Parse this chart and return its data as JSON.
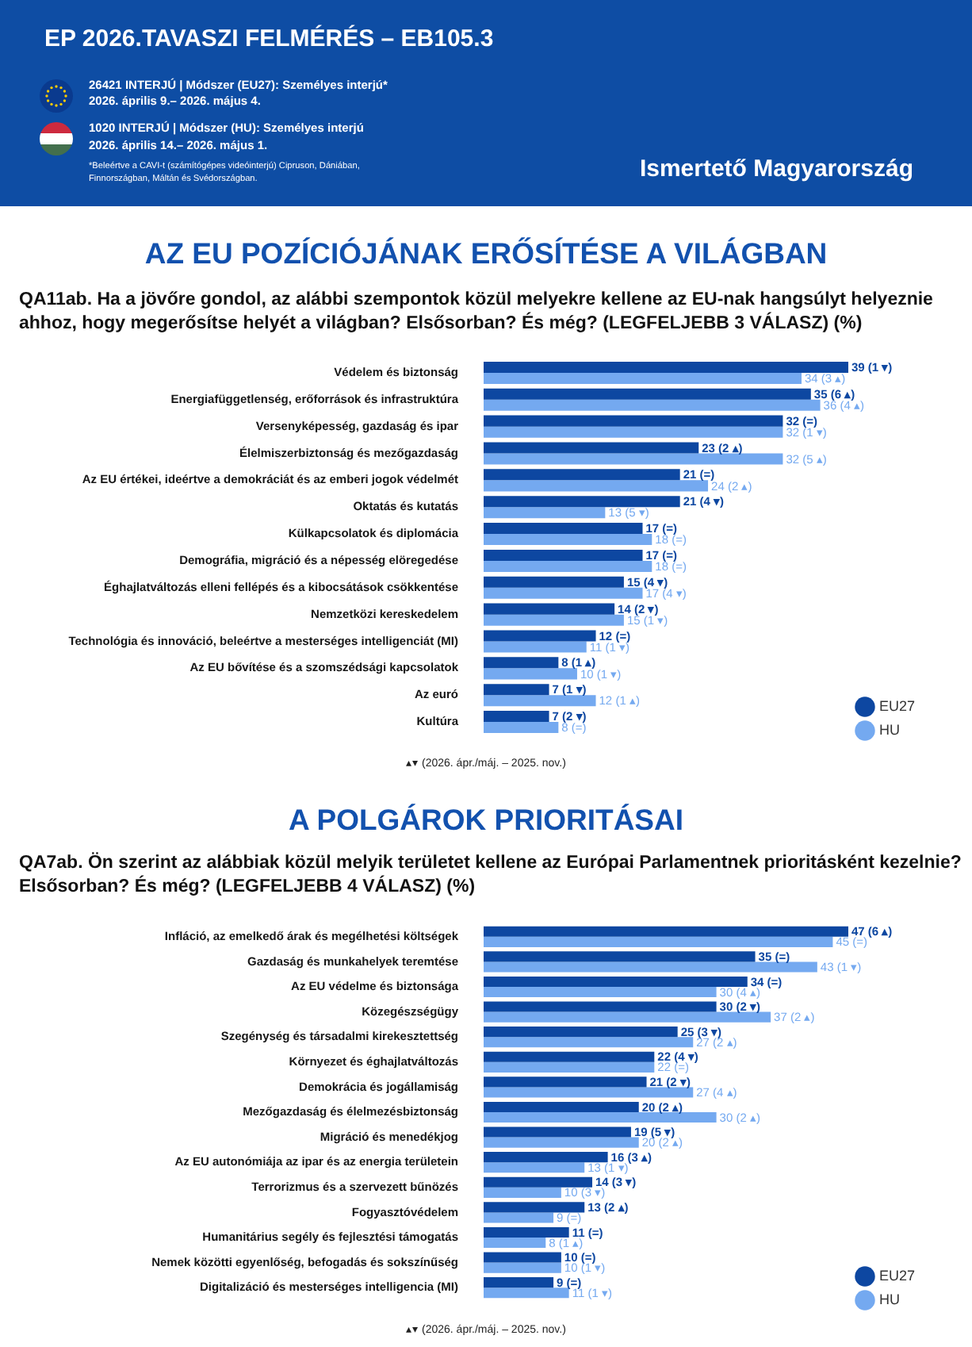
{
  "chart_data": [
    {
      "type": "other",
      "title": "EP 2026.TAVASZI FELMÉRÉS – EB105.3",
      "subtitle": "Ismertető Magyarország",
      "annotations": [
        "26421 INTERJÚ | Módszer (EU27): Személyes interjú*",
        "2026. április 9.– 2026. május 4.",
        "1020 INTERJÚ | Módszer (HU): Személyes interjú",
        "2026. április 14.– 2026. május 1.",
        "*Beleértve a CAVI-t (számítógépes videóinterjú) Cipruson, Dániában, Finnországban, Máltán és Svédországban."
      ]
    },
    {
      "type": "bar",
      "orientation": "horizontal",
      "title": "AZ EU POZÍCIÓJÁNAK ERŐSÍTÉSE A VILÁGBAN",
      "subtitle": "QA11ab. Ha a jövőre gondol, az alábbi szempontok közül melyekre kellene az EU-nak hangsúlyt helyeznie ahhoz, hogy megerősítse helyét a világban? Elsősorban? És még? (LEGFELJEBB 3 VÁLASZ) (%)",
      "categories": [
        "Védelem és biztonság",
        "Energiafüggetlenség, erőforrások és infrastruktúra",
        "Versenyképesség, gazdaság és ipar",
        "Élelmiszerbiztonság és mezőgazdaság",
        "Az EU értékei, ideértve a demokráciát és az emberi jogok védelmét",
        "Oktatás és kutatás",
        "Külkapcsolatok és diplomácia",
        "Demográfia, migráció és a népesség elöregedése",
        "Éghajlatváltozás elleni fellépés és a kibocsátások csökkentése",
        "Nemzetközi kereskedelem",
        "Technológia és innováció, beleértve a mesterséges intelligenciát (MI)",
        "Az EU bővítése és a szomszédsági kapcsolatok",
        "Az euró",
        "Kultúra"
      ],
      "series": [
        {
          "name": "EU27",
          "color": "#0d47a1",
          "values": [
            39,
            35,
            32,
            23,
            21,
            21,
            17,
            17,
            15,
            14,
            12,
            8,
            7,
            7
          ],
          "value_labels": [
            "39 (1 ▾)",
            "35 (6 ▴)",
            "32 (=)",
            "23 (2 ▴)",
            "21 (=)",
            "21 (4 ▾)",
            "17 (=)",
            "17 (=)",
            "15 (4 ▾)",
            "14 (2 ▾)",
            "12 (=)",
            "8 (1 ▴)",
            "7 (1 ▾)",
            "7 (2 ▾)"
          ]
        },
        {
          "name": "HU",
          "color": "#74a9f0",
          "values": [
            34,
            36,
            32,
            32,
            24,
            13,
            18,
            18,
            17,
            15,
            11,
            10,
            12,
            8
          ],
          "value_labels": [
            "34 (3 ▴)",
            "36 (4 ▴)",
            "32 (1 ▾)",
            "32 (5 ▴)",
            "24 (2 ▴)",
            "13 (5 ▾)",
            "18 (=)",
            "18 (=)",
            "17 (4 ▾)",
            "15 (1 ▾)",
            "11 (1 ▾)",
            "10 (1 ▾)",
            "12 (1 ▴)",
            "8 (=)"
          ]
        }
      ],
      "xlim": [
        0,
        39
      ],
      "tick_labels": "y",
      "legend": "bottom right",
      "annotations": [
        "▴▾ (2026. ápr./máj. – 2025. nov.)"
      ]
    },
    {
      "type": "bar",
      "orientation": "horizontal",
      "title": "A POLGÁROK PRIORITÁSAI",
      "subtitle": "QA7ab. Ön szerint az alábbiak közül melyik területet kellene az Európai Parlamentnek prioritásként kezelnie? Elsősorban? És még? (LEGFELJEBB 4 VÁLASZ) (%)",
      "categories": [
        "Infláció, az emelkedő árak és megélhetési költségek",
        "Gazdaság és munkahelyek teremtése",
        "Az EU védelme és biztonsága",
        "Közegészségügy",
        "Szegénység és társadalmi kirekesztettség",
        "Környezet és éghajlatváltozás",
        "Demokrácia és jogállamiság",
        "Mezőgazdaság és élelmezésbiztonság",
        "Migráció és menedékjog",
        "Az EU autonómiája az ipar és az energia területein",
        "Terrorizmus és a szervezett bűnözés",
        "Fogyasztóvédelem",
        "Humanitárius segély és fejlesztési támogatás",
        "Nemek közötti egyenlőség, befogadás és sokszínűség",
        "Digitalizáció és mesterséges intelligencia (MI)"
      ],
      "series": [
        {
          "name": "EU27",
          "color": "#0d47a1",
          "values": [
            47,
            35,
            34,
            30,
            25,
            22,
            21,
            20,
            19,
            16,
            14,
            13,
            11,
            10,
            9
          ],
          "value_labels": [
            "47 (6 ▴)",
            "35 (=)",
            "34 (=)",
            "30 (2 ▾)",
            "25 (3 ▾)",
            "22 (4 ▾)",
            "21 (2 ▾)",
            "20 (2 ▴)",
            "19 (5 ▾)",
            "16 (3 ▴)",
            "14 (3 ▾)",
            "13 (2 ▴)",
            "11 (=)",
            "10 (=)",
            "9 (=)"
          ]
        },
        {
          "name": "HU",
          "color": "#74a9f0",
          "values": [
            45,
            43,
            30,
            37,
            27,
            22,
            27,
            30,
            20,
            13,
            10,
            9,
            8,
            10,
            11
          ],
          "value_labels": [
            "45 (=)",
            "43 (1 ▾)",
            "30 (4 ▴)",
            "37 (2 ▴)",
            "27 (2 ▴)",
            "22 (=)",
            "27 (4 ▴)",
            "30 (2 ▴)",
            "20 (2 ▴)",
            "13 (1 ▾)",
            "10 (3 ▾)",
            "9 (=)",
            "8 (1 ▴)",
            "10 (1 ▾)",
            "11 (1 ▾)"
          ]
        }
      ],
      "xlim": [
        0,
        47
      ],
      "tick_labels": "y",
      "legend": "bottom right",
      "annotations": [
        "▴▾ (2026. ápr./máj. – 2025. nov.)"
      ]
    }
  ]
}
